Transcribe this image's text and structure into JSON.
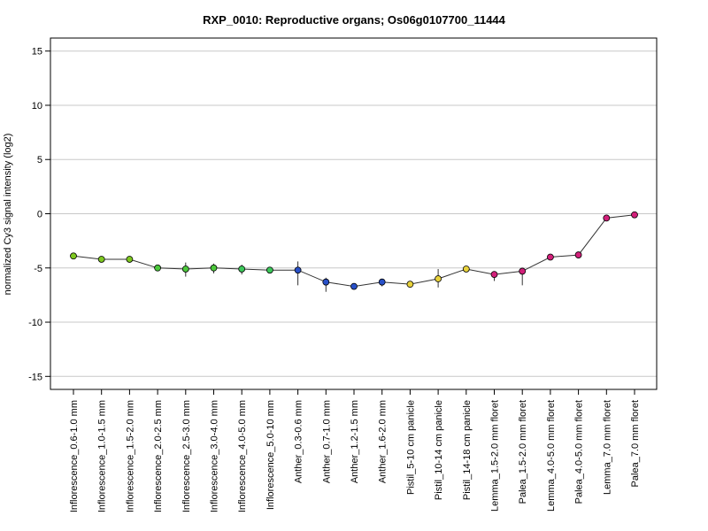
{
  "chart_data": {
    "type": "line",
    "title": "RXP_0010: Reproductive organs; Os06g0107700_11444",
    "xlabel": "",
    "ylabel": "normalized Cy3 signal intensity (log2)",
    "ylim": [
      -16.2,
      16.2
    ],
    "yticks": [
      -15,
      -10,
      -5,
      0,
      5,
      10,
      15
    ],
    "grid": true,
    "legend": "none",
    "categories": [
      "Inflorescence_0.6-1.0 mm",
      "Inflorescence_1.0-1.5 mm",
      "Inflorescence_1.5-2.0 mm",
      "Inflorescence_2.0-2.5 mm",
      "Inflorescence_2.5-3.0 mm",
      "Inflorescence_3.0-4.0 mm",
      "Inflorescence_4.0-5.0 mm",
      "Inflorescence_5.0-10 mm",
      "Anther_0.3-0.6 mm",
      "Anther_0.7-1.0 mm",
      "Anther_1.2-1.5 mm",
      "Anther_1.6-2.0 mm",
      "Pistil_5-10 cm panicle",
      "Pistil_10-14 cm panicle",
      "Pistil_14-18 cm panicle",
      "Lemma_1.5-2.0 mm floret",
      "Palea_1.5-2.0 mm floret",
      "Lemma_4.0-5.0 mm floret",
      "Palea_4.0-5.0 mm floret",
      "Lemma_7.0 mm floret",
      "Palea_7.0 mm floret"
    ],
    "values": [
      -3.9,
      -4.2,
      -4.2,
      -5.0,
      -5.1,
      -5.0,
      -5.1,
      -5.2,
      -5.2,
      -6.3,
      -6.7,
      -6.3,
      -6.5,
      -6.0,
      -5.1,
      -5.6,
      -5.3,
      -4.0,
      -3.8,
      -0.4,
      -0.1
    ],
    "error_low": [
      -3.9,
      -4.4,
      -4.5,
      -5.1,
      -5.8,
      -5.5,
      -5.6,
      -5.3,
      -6.6,
      -7.2,
      -6.8,
      -6.7,
      -6.8,
      -6.8,
      -5.2,
      -6.2,
      -6.6,
      -4.1,
      -3.9,
      -0.6,
      -0.3
    ],
    "error_high": [
      -3.8,
      -4.1,
      -4.0,
      -4.9,
      -4.5,
      -4.6,
      -4.7,
      -5.1,
      -4.4,
      -5.9,
      -6.6,
      -6.0,
      -6.3,
      -5.1,
      -4.9,
      -5.3,
      -5.0,
      -3.9,
      -3.7,
      -0.2,
      0.1
    ],
    "point_colors": [
      "#7ec820",
      "#7ec820",
      "#7ec820",
      "#4cc83c",
      "#4cc83c",
      "#4cc83c",
      "#3cc85a",
      "#3cc85a",
      "#2850c8",
      "#2850c8",
      "#2850c8",
      "#2850c8",
      "#e8d23c",
      "#e8d23c",
      "#e8d23c",
      "#d2207a",
      "#d2207a",
      "#d2207a",
      "#d2207a",
      "#d2207a",
      "#d2207a"
    ],
    "line_color": "#333333"
  }
}
